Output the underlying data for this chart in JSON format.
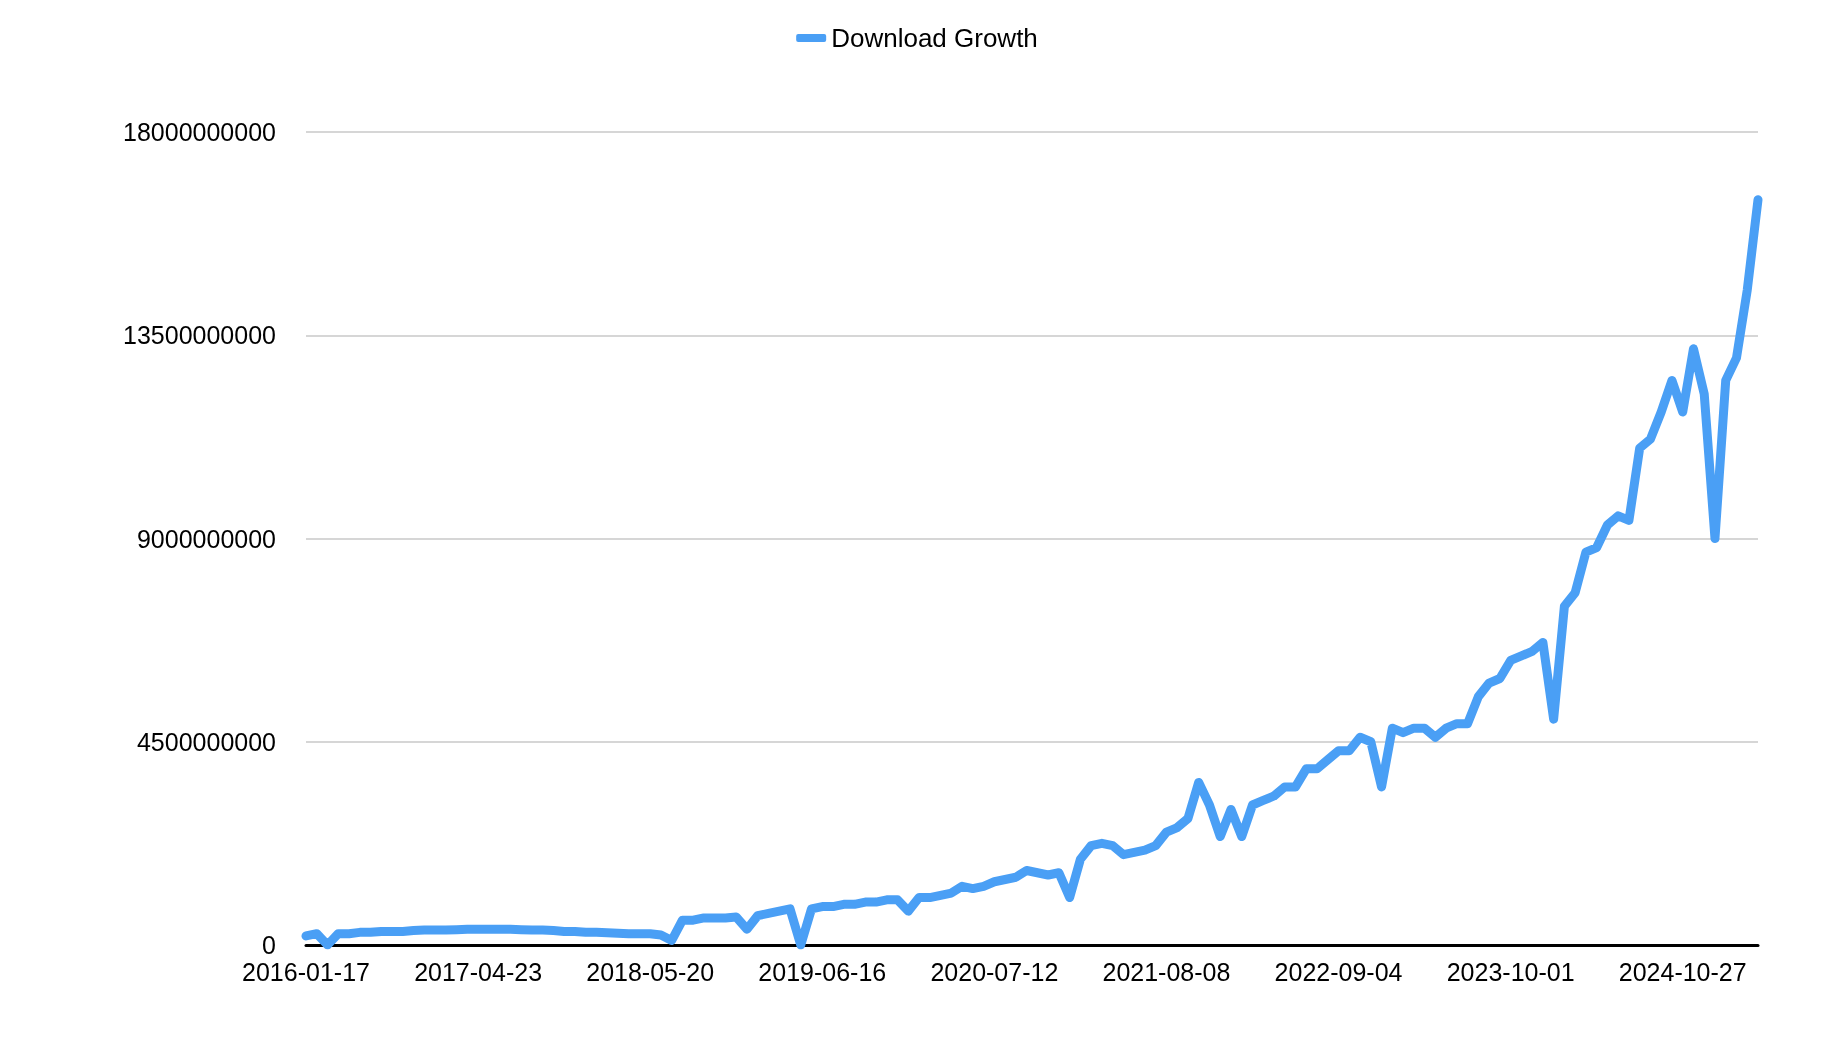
{
  "chart_data": {
    "type": "line",
    "categories": [
      "2016-01-17",
      null,
      null,
      null,
      null,
      null,
      null,
      null,
      null,
      null,
      null,
      null,
      null,
      null,
      null,
      null,
      "2017-04-23",
      null,
      null,
      null,
      null,
      null,
      null,
      null,
      null,
      null,
      null,
      null,
      null,
      null,
      null,
      null,
      "2018-05-20",
      null,
      null,
      null,
      null,
      null,
      null,
      null,
      null,
      null,
      null,
      null,
      null,
      null,
      null,
      null,
      "2019-06-16",
      null,
      null,
      null,
      null,
      null,
      null,
      null,
      null,
      null,
      null,
      null,
      null,
      null,
      null,
      null,
      "2020-07-12",
      null,
      null,
      null,
      null,
      null,
      null,
      null,
      null,
      null,
      null,
      null,
      null,
      null,
      null,
      null,
      "2021-08-08",
      null,
      null,
      null,
      null,
      null,
      null,
      null,
      null,
      null,
      null,
      null,
      null,
      null,
      null,
      null,
      "2022-09-04",
      null,
      null,
      null,
      null,
      null,
      null,
      null,
      null,
      null,
      null,
      null,
      null,
      null,
      null,
      null,
      "2023-10-01",
      null,
      null,
      null,
      null,
      null,
      null,
      null,
      null,
      null,
      null,
      null,
      null,
      null,
      null,
      null,
      "2024-10-27",
      null,
      null,
      null,
      null,
      null,
      null,
      null
    ],
    "series": [
      {
        "name": "Download Growth",
        "color": "#4a9ff5",
        "values": [
          200000000.0,
          250000000.0,
          0,
          250000000.0,
          250000000.0,
          280000000.0,
          280000000.0,
          300000000.0,
          300000000.0,
          300000000.0,
          320000000.0,
          330000000.0,
          330000000.0,
          330000000.0,
          340000000.0,
          350000000.0,
          350000000.0,
          350000000.0,
          350000000.0,
          350000000.0,
          340000000.0,
          330000000.0,
          330000000.0,
          320000000.0,
          300000000.0,
          300000000.0,
          280000000.0,
          280000000.0,
          270000000.0,
          260000000.0,
          250000000.0,
          250000000.0,
          250000000.0,
          220000000.0,
          100000000.0,
          550000000.0,
          550000000.0,
          600000000.0,
          600000000.0,
          600000000.0,
          620000000.0,
          350000000.0,
          650000000.0,
          700000000.0,
          750000000.0,
          800000000.0,
          0,
          800000000.0,
          850000000.0,
          850000000.0,
          900000000.0,
          900000000.0,
          950000000.0,
          950000000.0,
          1000000000.0,
          1000000000.0,
          750000000.0,
          1050000000.0,
          1050000000.0,
          1100000000.0,
          1150000000.0,
          1300000000.0,
          1250000000.0,
          1300000000.0,
          1400000000.0,
          1450000000.0,
          1500000000.0,
          1650000000.0,
          1600000000.0,
          1550000000.0,
          1600000000.0,
          1050000000.0,
          1900000000.0,
          2200000000.0,
          2250000000.0,
          2200000000.0,
          2000000000.0,
          2050000000.0,
          2100000000.0,
          2200000000.0,
          2500000000.0,
          2600000000.0,
          2800000000.0,
          3600000000.0,
          3100000000.0,
          2400000000.0,
          3000000000.0,
          2400000000.0,
          3100000000.0,
          3200000000.0,
          3300000000.0,
          3500000000.0,
          3500000000.0,
          3900000000.0,
          3900000000.0,
          4100000000.0,
          4300000000.0,
          4300000000.0,
          4600000000.0,
          4500000000.0,
          3500000000.0,
          4800000000.0,
          4700000000.0,
          4800000000.0,
          4800000000.0,
          4600000000.0,
          4800000000.0,
          4900000000.0,
          4900000000.0,
          5500000000.0,
          5800000000.0,
          5900000000.0,
          6300000000.0,
          6400000000.0,
          6500000000.0,
          6700000000.0,
          5000000000.0,
          7500000000.0,
          7800000000.0,
          8700000000.0,
          8800000000.0,
          9300000000.0,
          9500000000.0,
          9400000000.0,
          11000000000.0,
          11200000000.0,
          11800000000.0,
          12500000000.0,
          11800000000.0,
          13200000000.0,
          12200000000.0,
          9000000000.0,
          12500000000.0,
          13000000000.0,
          14500000000.0,
          16500000000.0
        ]
      }
    ],
    "ylim": [
      0,
      18000000000
    ],
    "yticks": [
      0,
      4500000000,
      9000000000,
      13500000000,
      18000000000
    ],
    "grid": "y",
    "legend": "top",
    "marker": "none",
    "line_style": "solid"
  }
}
